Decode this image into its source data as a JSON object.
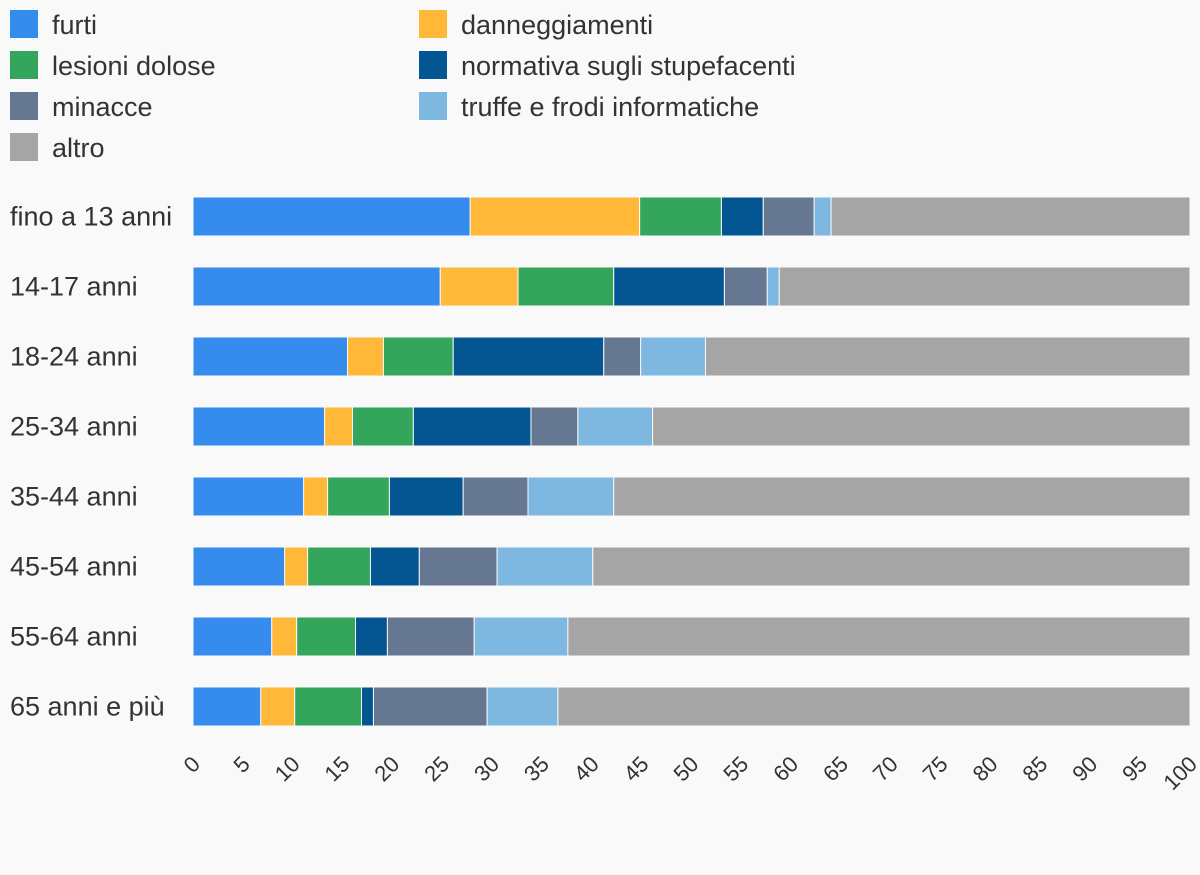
{
  "chart_data": {
    "type": "bar",
    "orientation": "horizontal",
    "stacked": true,
    "title": "",
    "xlabel": "",
    "ylabel": "",
    "xlim": [
      0,
      100
    ],
    "x_ticks": [
      "0",
      "5",
      "10",
      "15",
      "20",
      "25",
      "30",
      "35",
      "40",
      "45",
      "50",
      "55",
      "60",
      "65",
      "70",
      "75",
      "80",
      "85",
      "90",
      "95",
      "100"
    ],
    "grid": false,
    "legend_position": "top",
    "categories": [
      "fino a 13 anni",
      "14-17 anni",
      "18-24 anni",
      "25-34 anni",
      "35-44 anni",
      "45-54 anni",
      "55-64 anni",
      "65 anni e più"
    ],
    "series": [
      {
        "name": "furti",
        "color": "#368ced",
        "values": [
          27.8,
          24.8,
          15.5,
          13.2,
          11.1,
          9.2,
          7.9,
          6.8
        ]
      },
      {
        "name": "danneggiamenti",
        "color": "#ffb838",
        "values": [
          17.0,
          7.8,
          3.6,
          2.8,
          2.4,
          2.3,
          2.5,
          3.4
        ]
      },
      {
        "name": "lesioni dolose",
        "color": "#33a65c",
        "values": [
          8.2,
          9.6,
          7.0,
          6.1,
          6.2,
          6.3,
          5.9,
          6.7
        ]
      },
      {
        "name": "normativa sugli stupefacenti",
        "color": "#045693",
        "values": [
          4.2,
          11.1,
          15.1,
          11.8,
          7.4,
          4.9,
          3.2,
          1.2
        ]
      },
      {
        "name": "minacce",
        "color": "#667891",
        "values": [
          5.1,
          4.3,
          3.7,
          4.7,
          6.5,
          7.8,
          8.7,
          11.4
        ]
      },
      {
        "name": "truffe e frodi informatiche",
        "color": "#7eb7df",
        "values": [
          1.7,
          1.2,
          6.5,
          7.5,
          8.6,
          9.6,
          9.4,
          7.1
        ]
      },
      {
        "name": "altro",
        "color": "#a5a5a5",
        "values": [
          36.0,
          41.2,
          48.6,
          53.9,
          57.8,
          59.9,
          62.4,
          63.4
        ]
      }
    ]
  }
}
